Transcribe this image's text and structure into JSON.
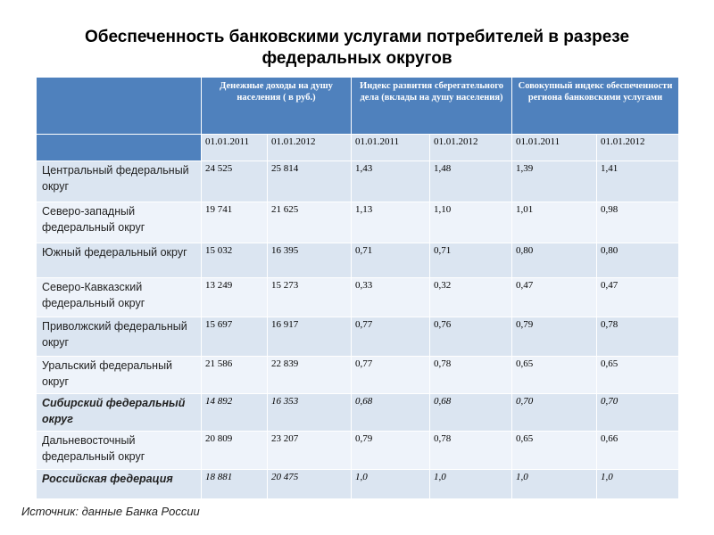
{
  "title": "Обеспеченность банковскими услугами потребителей в разрезе федеральных округов",
  "headers": {
    "group1": "Денежные доходы на душу населения ( в руб.)",
    "group2": "Индекс развития сберегательного дела (вклады на душу населения)",
    "group3": "Совокупный индекс обеспеченности региона банковскими услугами",
    "dates": [
      "01.01.2011",
      "01.01.2012",
      "01.01.2011",
      "01.01.2012",
      "01.01.2011",
      "01.01.2012"
    ]
  },
  "rows": [
    {
      "region": "Центральный федеральный округ",
      "values": [
        "24 525",
        "25 814",
        "1,43",
        "1,48",
        "1,39",
        "1,41"
      ]
    },
    {
      "region": "Северо-западный федеральный округ",
      "values": [
        "19 741",
        "21 625",
        "1,13",
        "1,10",
        "1,01",
        "0,98"
      ]
    },
    {
      "region": "Южный федеральный округ",
      "values": [
        "15 032",
        "16 395",
        "0,71",
        "0,71",
        "0,80",
        "0,80"
      ]
    },
    {
      "region": "Северо-Кавказский федеральный округ",
      "values": [
        "13 249",
        "15 273",
        "0,33",
        "0,32",
        "0,47",
        "0,47"
      ]
    },
    {
      "region": "Приволжский федеральный округ",
      "values": [
        "15 697",
        "16 917",
        "0,77",
        "0,76",
        "0,79",
        "0,78"
      ]
    },
    {
      "region": "Уральский федеральный округ",
      "values": [
        "21 586",
        "22 839",
        "0,77",
        "0,78",
        "0,65",
        "0,65"
      ]
    },
    {
      "region": "Сибирский федеральный округ",
      "values": [
        "14 892",
        "16 353",
        "0,68",
        "0,68",
        "0,70",
        "0,70"
      ]
    },
    {
      "region": "Дальневосточный федеральный округ",
      "values": [
        "20 809",
        "23 207",
        "0,79",
        "0,78",
        "0,65",
        "0,66"
      ]
    },
    {
      "region": "Российская федерация",
      "values": [
        "18 881",
        "20 475",
        "1,0",
        "1,0",
        "1,0",
        "1,0"
      ]
    }
  ],
  "source": "Источник: данные Банка России"
}
